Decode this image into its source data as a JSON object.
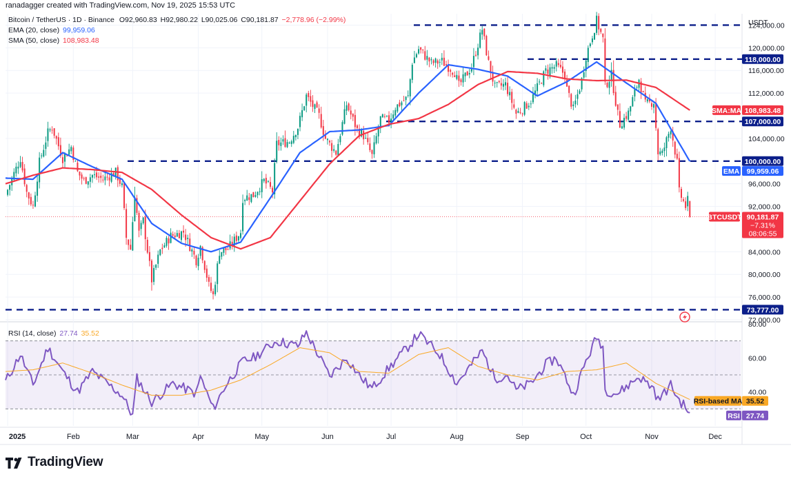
{
  "header": {
    "credit": "ranadagger created with TradingView.com, Nov 19, 2025 15:53 UTC"
  },
  "legend": {
    "symbol": "Bitcoin / TetherUS · 1D · Binance",
    "ohlc": {
      "o": "O92,960.83",
      "h": "H92,980.22",
      "l": "L90,025.06",
      "c": "C90,181.87",
      "chg": "−2,778.96 (−2.99%)"
    },
    "ema": {
      "label": "EMA (20, close)",
      "value": "99,959.06",
      "color": "#2962ff"
    },
    "sma": {
      "label": "SMA (50, close)",
      "value": "108,983.48",
      "color": "#f23645"
    },
    "rsi": {
      "label": "RSI (14, close)",
      "value": "27.74",
      "ma": "35.52",
      "color": "#7e57c2",
      "ma_color": "#f9a825"
    }
  },
  "axis": {
    "currency": "USDT",
    "price_ticks": [
      "124,000.00",
      "120,000.00",
      "116,000.00",
      "112,000.00",
      "104,000.00",
      "96,000.00",
      "92,000.00",
      "84,000.00",
      "80,000.00",
      "76,000.00",
      "72,000.00"
    ],
    "rsi_ticks": [
      "80.00",
      "60.00",
      "40.00"
    ],
    "time_ticks": [
      "2025",
      "Feb",
      "Mar",
      "Apr",
      "May",
      "Jun",
      "Jul",
      "Aug",
      "Sep",
      "Oct",
      "Nov",
      "Dec"
    ]
  },
  "labels": {
    "level_118": "118,000.00",
    "sma_tag": "SMA:MA",
    "sma_val": "108,983.48",
    "level_107": "107,000.00",
    "level_100": "100,000.00",
    "ema_tag": "EMA",
    "ema_val": "99,959.06",
    "sym_tag": "BTCUSDT",
    "last_price": "90,181.87",
    "last_pct": "−7.31%",
    "countdown": "08:06:55",
    "level_73777": "73,777.00",
    "rsi_ma_tag": "RSI-based MA",
    "rsi_ma_val": "35.52",
    "rsi_tag": "RSI",
    "rsi_val": "27.74"
  },
  "colors": {
    "up": "#089981",
    "down": "#f23645",
    "ema": "#2962ff",
    "sma": "#f23645",
    "rsi": "#7e57c2",
    "rsi_ma": "#f9a825",
    "level": "#0c1f8a",
    "band": "#7e57c2"
  },
  "brand": {
    "name": "TradingView"
  },
  "chart_data": [
    {
      "type": "candlestick",
      "title": "Bitcoin / TetherUS · 1D · Binance",
      "ylim": [
        72000,
        126000
      ],
      "x_ticks": [
        "2025",
        "Feb",
        "Mar",
        "Apr",
        "May",
        "Jun",
        "Jul",
        "Aug",
        "Sep",
        "Oct",
        "Nov",
        "Dec"
      ],
      "last_close": 90181.87,
      "anchors": [
        [
          "2024-12-31",
          94000
        ],
        [
          "2025-01-04",
          97800
        ],
        [
          "2025-01-07",
          100500
        ],
        [
          "2025-01-10",
          94500
        ],
        [
          "2025-01-13",
          92000
        ],
        [
          "2025-01-16",
          99800
        ],
        [
          "2025-01-20",
          105000
        ],
        [
          "2025-01-22",
          106000
        ],
        [
          "2025-01-27",
          100500
        ],
        [
          "2025-01-31",
          102500
        ],
        [
          "2025-02-03",
          98000
        ],
        [
          "2025-02-06",
          96500
        ],
        [
          "2025-02-10",
          97500
        ],
        [
          "2025-02-15",
          96800
        ],
        [
          "2025-02-21",
          98000
        ],
        [
          "2025-02-24",
          95500
        ],
        [
          "2025-02-26",
          86500
        ],
        [
          "2025-02-28",
          84500
        ],
        [
          "2025-03-02",
          94300
        ],
        [
          "2025-03-04",
          87300
        ],
        [
          "2025-03-06",
          89500
        ],
        [
          "2025-03-10",
          79000
        ],
        [
          "2025-03-14",
          84200
        ],
        [
          "2025-03-19",
          86800
        ],
        [
          "2025-03-25",
          87500
        ],
        [
          "2025-03-31",
          82500
        ],
        [
          "2025-04-02",
          85000
        ],
        [
          "2025-04-06",
          78000
        ],
        [
          "2025-04-08",
          76300
        ],
        [
          "2025-04-11",
          84000
        ],
        [
          "2025-04-15",
          84500
        ],
        [
          "2025-04-21",
          87500
        ],
        [
          "2025-04-22",
          93500
        ],
        [
          "2025-04-27",
          94000
        ],
        [
          "2025-05-02",
          96500
        ],
        [
          "2025-05-06",
          94700
        ],
        [
          "2025-05-08",
          103000
        ],
        [
          "2025-05-14",
          103500
        ],
        [
          "2025-05-18",
          106000
        ],
        [
          "2025-05-22",
          111500
        ],
        [
          "2025-05-28",
          108000
        ],
        [
          "2025-05-31",
          104000
        ],
        [
          "2025-06-05",
          101500
        ],
        [
          "2025-06-10",
          110000
        ],
        [
          "2025-06-15",
          105500
        ],
        [
          "2025-06-18",
          104500
        ],
        [
          "2025-06-22",
          100900
        ],
        [
          "2025-06-26",
          107500
        ],
        [
          "2025-06-30",
          107100
        ],
        [
          "2025-07-03",
          109500
        ],
        [
          "2025-07-09",
          111300
        ],
        [
          "2025-07-11",
          117500
        ],
        [
          "2025-07-14",
          119800
        ],
        [
          "2025-07-20",
          117300
        ],
        [
          "2025-07-25",
          117600
        ],
        [
          "2025-07-31",
          115700
        ],
        [
          "2025-08-02",
          113300
        ],
        [
          "2025-08-08",
          116700
        ],
        [
          "2025-08-13",
          123300
        ],
        [
          "2025-08-16",
          117300
        ],
        [
          "2025-08-19",
          113000
        ],
        [
          "2025-08-24",
          113500
        ],
        [
          "2025-08-29",
          108400
        ],
        [
          "2025-09-01",
          109200
        ],
        [
          "2025-09-05",
          110700
        ],
        [
          "2025-09-12",
          115900
        ],
        [
          "2025-09-17",
          116800
        ],
        [
          "2025-09-21",
          115300
        ],
        [
          "2025-09-22",
          112700
        ],
        [
          "2025-09-25",
          109100
        ],
        [
          "2025-09-29",
          114300
        ],
        [
          "2025-10-01",
          118600
        ],
        [
          "2025-10-05",
          123500
        ],
        [
          "2025-10-06",
          124800
        ],
        [
          "2025-10-09",
          121500
        ],
        [
          "2025-10-10",
          113200
        ],
        [
          "2025-10-13",
          115200
        ],
        [
          "2025-10-16",
          108200
        ],
        [
          "2025-10-17",
          106500
        ],
        [
          "2025-10-21",
          108500
        ],
        [
          "2025-10-26",
          114500
        ],
        [
          "2025-10-29",
          110000
        ],
        [
          "2025-11-02",
          110500
        ],
        [
          "2025-11-04",
          101500
        ],
        [
          "2025-11-06",
          101300
        ],
        [
          "2025-11-10",
          106000
        ],
        [
          "2025-11-13",
          99700
        ],
        [
          "2025-11-14",
          94500
        ],
        [
          "2025-11-17",
          92000
        ],
        [
          "2025-11-18",
          92960.83
        ],
        [
          "2025-11-19",
          90181.87
        ]
      ],
      "last_candle": {
        "date": "2025-11-19",
        "open": 92960.83,
        "high": 92980.22,
        "low": 90025.06,
        "close": 90181.87
      },
      "series": [
        {
          "name": "EMA (20, close)",
          "last": 99959.06,
          "anchors": [
            [
              "2024-12-31",
              97000
            ],
            [
              "2025-01-13",
              96800
            ],
            [
              "2025-01-27",
              101500
            ],
            [
              "2025-02-10",
              99000
            ],
            [
              "2025-02-24",
              96800
            ],
            [
              "2025-03-10",
              89000
            ],
            [
              "2025-03-24",
              85500
            ],
            [
              "2025-04-07",
              84000
            ],
            [
              "2025-04-21",
              85700
            ],
            [
              "2025-05-05",
              93500
            ],
            [
              "2025-05-19",
              101500
            ],
            [
              "2025-06-02",
              105200
            ],
            [
              "2025-06-16",
              105500
            ],
            [
              "2025-06-30",
              106300
            ],
            [
              "2025-07-14",
              112000
            ],
            [
              "2025-07-28",
              117000
            ],
            [
              "2025-08-11",
              116200
            ],
            [
              "2025-08-25",
              115000
            ],
            [
              "2025-09-08",
              111500
            ],
            [
              "2025-09-22",
              114000
            ],
            [
              "2025-10-06",
              117500
            ],
            [
              "2025-10-20",
              113800
            ],
            [
              "2025-11-03",
              110200
            ],
            [
              "2025-11-19",
              99959.06
            ]
          ]
        },
        {
          "name": "SMA (50, close)",
          "last": 108983.48,
          "anchors": [
            [
              "2024-12-31",
              96000
            ],
            [
              "2025-01-13",
              97500
            ],
            [
              "2025-01-27",
              98800
            ],
            [
              "2025-02-10",
              98500
            ],
            [
              "2025-02-24",
              98000
            ],
            [
              "2025-03-10",
              95000
            ],
            [
              "2025-03-24",
              90500
            ],
            [
              "2025-04-07",
              86500
            ],
            [
              "2025-04-21",
              84500
            ],
            [
              "2025-05-05",
              86500
            ],
            [
              "2025-05-19",
              93000
            ],
            [
              "2025-06-02",
              99500
            ],
            [
              "2025-06-16",
              104500
            ],
            [
              "2025-06-30",
              106500
            ],
            [
              "2025-07-14",
              107500
            ],
            [
              "2025-07-28",
              110000
            ],
            [
              "2025-08-11",
              113500
            ],
            [
              "2025-08-25",
              115800
            ],
            [
              "2025-09-08",
              115500
            ],
            [
              "2025-09-22",
              114500
            ],
            [
              "2025-10-06",
              114200
            ],
            [
              "2025-10-20",
              114300
            ],
            [
              "2025-11-03",
              113000
            ],
            [
              "2025-11-19",
              108983.48
            ]
          ]
        }
      ],
      "levels": [
        124000,
        118000,
        107000,
        100000,
        73777
      ]
    },
    {
      "type": "line",
      "title": "RSI (14, close)",
      "ylim": [
        20,
        80
      ],
      "bands": [
        30,
        70
      ],
      "last": 27.74,
      "ma_last": 35.52,
      "series": [
        {
          "name": "RSI (14, close)",
          "anchors": [
            [
              "2024-12-31",
              46
            ],
            [
              "2025-01-07",
              62
            ],
            [
              "2025-01-13",
              44
            ],
            [
              "2025-01-20",
              66
            ],
            [
              "2025-01-27",
              52
            ],
            [
              "2025-02-03",
              40
            ],
            [
              "2025-02-10",
              52
            ],
            [
              "2025-02-18",
              44
            ],
            [
              "2025-02-24",
              38
            ],
            [
              "2025-03-01",
              26
            ],
            [
              "2025-03-03",
              48
            ],
            [
              "2025-03-10",
              34
            ],
            [
              "2025-03-20",
              45
            ],
            [
              "2025-03-31",
              39
            ],
            [
              "2025-04-02",
              49
            ],
            [
              "2025-04-08",
              30
            ],
            [
              "2025-04-14",
              44
            ],
            [
              "2025-04-22",
              58
            ],
            [
              "2025-04-27",
              60
            ],
            [
              "2025-05-08",
              70
            ],
            [
              "2025-05-18",
              67
            ],
            [
              "2025-05-22",
              75
            ],
            [
              "2025-05-28",
              61
            ],
            [
              "2025-06-02",
              49
            ],
            [
              "2025-06-10",
              60
            ],
            [
              "2025-06-17",
              48
            ],
            [
              "2025-06-22",
              42
            ],
            [
              "2025-06-30",
              54
            ],
            [
              "2025-07-10",
              68
            ],
            [
              "2025-07-14",
              74
            ],
            [
              "2025-07-24",
              62
            ],
            [
              "2025-08-01",
              45
            ],
            [
              "2025-08-13",
              64
            ],
            [
              "2025-08-19",
              48
            ],
            [
              "2025-08-25",
              50
            ],
            [
              "2025-08-29",
              41
            ],
            [
              "2025-09-05",
              45
            ],
            [
              "2025-09-12",
              56
            ],
            [
              "2025-09-17",
              60
            ],
            [
              "2025-09-22",
              47
            ],
            [
              "2025-09-25",
              38
            ],
            [
              "2025-10-01",
              58
            ],
            [
              "2025-10-06",
              72
            ],
            [
              "2025-10-09",
              67
            ],
            [
              "2025-10-10",
              41
            ],
            [
              "2025-10-16",
              39
            ],
            [
              "2025-10-26",
              49
            ],
            [
              "2025-11-02",
              42
            ],
            [
              "2025-11-04",
              35
            ],
            [
              "2025-11-10",
              44
            ],
            [
              "2025-11-14",
              35
            ],
            [
              "2025-11-17",
              31
            ],
            [
              "2025-11-19",
              27.74
            ]
          ]
        },
        {
          "name": "RSI-based MA",
          "anchors": [
            [
              "2024-12-31",
              52
            ],
            [
              "2025-01-13",
              53
            ],
            [
              "2025-01-27",
              57
            ],
            [
              "2025-02-10",
              51
            ],
            [
              "2025-02-24",
              44
            ],
            [
              "2025-03-10",
              38
            ],
            [
              "2025-03-24",
              38
            ],
            [
              "2025-04-07",
              41
            ],
            [
              "2025-04-21",
              47
            ],
            [
              "2025-05-05",
              56
            ],
            [
              "2025-05-19",
              66
            ],
            [
              "2025-06-02",
              63
            ],
            [
              "2025-06-16",
              52
            ],
            [
              "2025-06-30",
              51
            ],
            [
              "2025-07-14",
              62
            ],
            [
              "2025-07-28",
              66
            ],
            [
              "2025-08-11",
              55
            ],
            [
              "2025-08-25",
              50
            ],
            [
              "2025-09-08",
              47
            ],
            [
              "2025-09-22",
              52
            ],
            [
              "2025-10-06",
              53
            ],
            [
              "2025-10-20",
              57
            ],
            [
              "2025-11-03",
              45
            ],
            [
              "2025-11-19",
              35.52
            ]
          ]
        }
      ]
    }
  ]
}
